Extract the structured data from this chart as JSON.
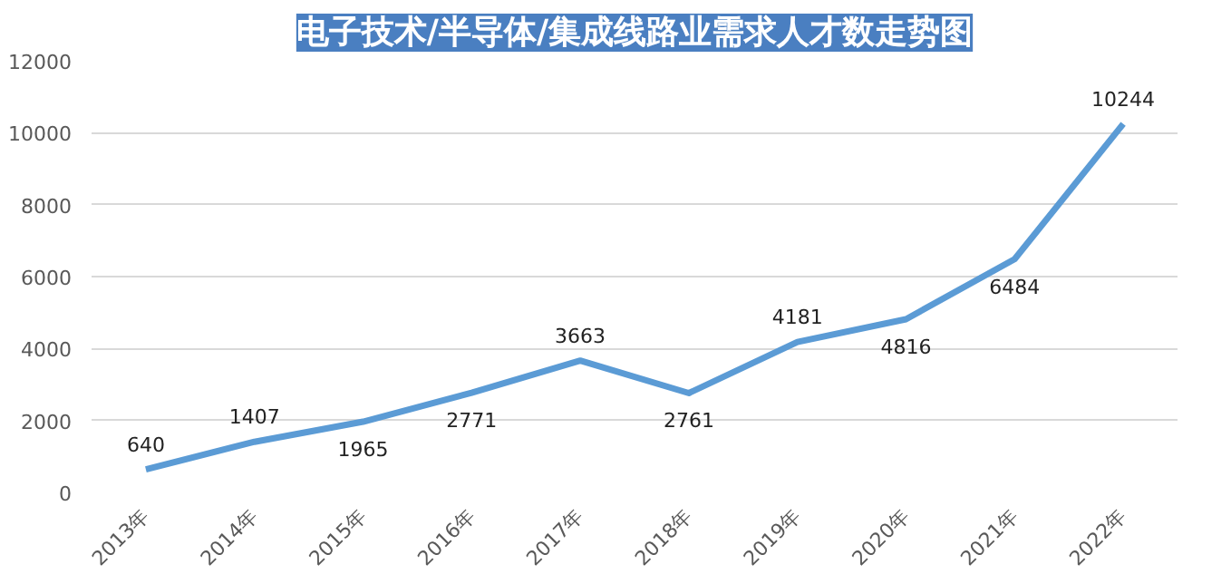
{
  "chart_data": {
    "type": "line",
    "title": "电子技术/半导体/集成线路业需求人才数走势图",
    "categories": [
      "2013年",
      "2014年",
      "2015年",
      "2016年",
      "2017年",
      "2018年",
      "2019年",
      "2020年",
      "2021年",
      "2022年"
    ],
    "series": [
      {
        "color": "#5b9bd5",
        "values": [
          640,
          1407,
          1965,
          2771,
          3663,
          2761,
          4181,
          4816,
          6484,
          10244
        ]
      }
    ],
    "ylim": [
      0,
      12000
    ],
    "yticks": [
      0,
      2000,
      4000,
      6000,
      8000,
      10000,
      12000
    ],
    "grid": "y",
    "data_labels": true,
    "marker": "none",
    "line_style": "solid"
  }
}
